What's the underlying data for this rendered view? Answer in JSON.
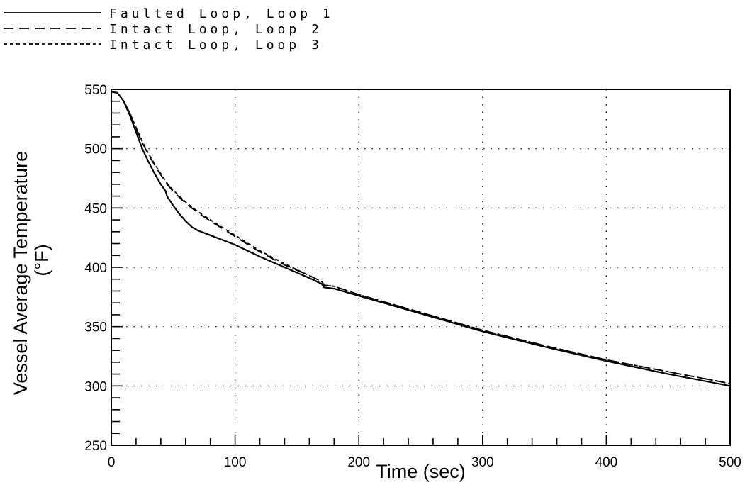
{
  "chart_data": {
    "type": "line",
    "title": "",
    "xlabel": "Time (sec)",
    "ylabel": "Vessel Average Temperature",
    "ylabel_unit": "(°F)",
    "xlim": [
      0,
      500
    ],
    "ylim": [
      250,
      550
    ],
    "xticks": [
      0,
      100,
      200,
      300,
      400,
      500
    ],
    "yticks": [
      250,
      300,
      350,
      400,
      450,
      500,
      550
    ],
    "xtick_labels": [
      "0",
      "100",
      "200",
      "300",
      "400",
      "500"
    ],
    "ytick_labels": [
      "250",
      "300",
      "350",
      "400",
      "450",
      "500",
      "550"
    ],
    "grid": "dotted",
    "legend_position": "top-left, outside plot",
    "series": [
      {
        "name": "Faulted Loop, Loop 1",
        "style": "solid",
        "x": [
          0,
          5,
          10,
          15,
          20,
          25,
          30,
          35,
          40,
          44,
          45,
          50,
          55,
          60,
          65,
          70,
          80,
          90,
          100,
          120,
          140,
          160,
          170,
          172,
          180,
          200,
          220,
          250,
          300,
          350,
          400,
          450,
          500
        ],
        "y": [
          548,
          547,
          540,
          528,
          514,
          500,
          489,
          479,
          470,
          464,
          460,
          452,
          445,
          439,
          434,
          431,
          427,
          423,
          419,
          409,
          400,
          391,
          386,
          383,
          382,
          376,
          370,
          361,
          346,
          333,
          321,
          310,
          300
        ]
      },
      {
        "name": "Intact Loop, Loop 2",
        "style": "long-dash",
        "x": [
          0,
          5,
          10,
          15,
          20,
          25,
          30,
          35,
          40,
          45,
          50,
          60,
          70,
          80,
          100,
          120,
          140,
          160,
          170,
          172,
          180,
          200,
          220,
          250,
          300,
          350,
          400,
          450,
          500
        ],
        "y": [
          548,
          547,
          540,
          530,
          517,
          505,
          495,
          486,
          478,
          470,
          464,
          454,
          446,
          439,
          426,
          413,
          402,
          393,
          388,
          385,
          384,
          377,
          371,
          362,
          347,
          334,
          322,
          312,
          302
        ]
      },
      {
        "name": "Intact Loop, Loop 3",
        "style": "short-dash",
        "x": [
          0,
          5,
          10,
          15,
          20,
          25,
          30,
          35,
          40,
          45,
          50,
          60,
          70,
          80,
          100,
          120,
          140,
          160,
          170,
          172,
          180,
          200,
          220,
          250,
          300,
          350,
          400,
          450,
          500
        ],
        "y": [
          548,
          547,
          540,
          530,
          518,
          506,
          496,
          487,
          479,
          471,
          465,
          455,
          447,
          440,
          427,
          414,
          403,
          393,
          388,
          385,
          384,
          377,
          371,
          362,
          347,
          334,
          322,
          312,
          302
        ]
      }
    ]
  }
}
